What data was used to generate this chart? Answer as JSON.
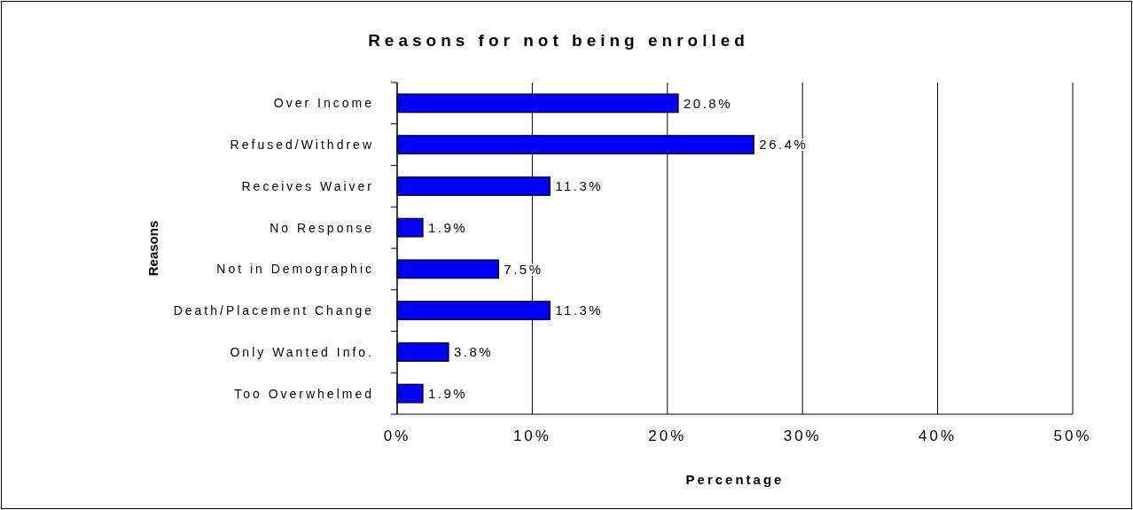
{
  "chart_data": {
    "type": "bar",
    "orientation": "horizontal",
    "title": "Reasons for not being enrolled",
    "xlabel": "Percentage",
    "ylabel": "Reasons",
    "categories": [
      "Over Income",
      "Refused/Withdrew",
      "Receives Waiver",
      "No Response",
      "Not in Demographic",
      "Death/Placement Change",
      "Only Wanted Info.",
      "Too Overwhelmed"
    ],
    "values": [
      20.8,
      26.4,
      11.3,
      1.9,
      7.5,
      11.3,
      3.8,
      1.9
    ],
    "value_labels": [
      "20.8%",
      "26.4%",
      "11.3%",
      "1.9%",
      "7.5%",
      "11.3%",
      "3.8%",
      "1.9%"
    ],
    "color": "#0000ff",
    "xlim": [
      0,
      50
    ],
    "xticks": [
      {
        "value": 0,
        "label": "0%"
      },
      {
        "value": 10,
        "label": "10%"
      },
      {
        "value": 20,
        "label": "20%"
      },
      {
        "value": 30,
        "label": "30%"
      },
      {
        "value": 40,
        "label": "40%"
      },
      {
        "value": 50,
        "label": "50%"
      }
    ],
    "grid": "x"
  }
}
